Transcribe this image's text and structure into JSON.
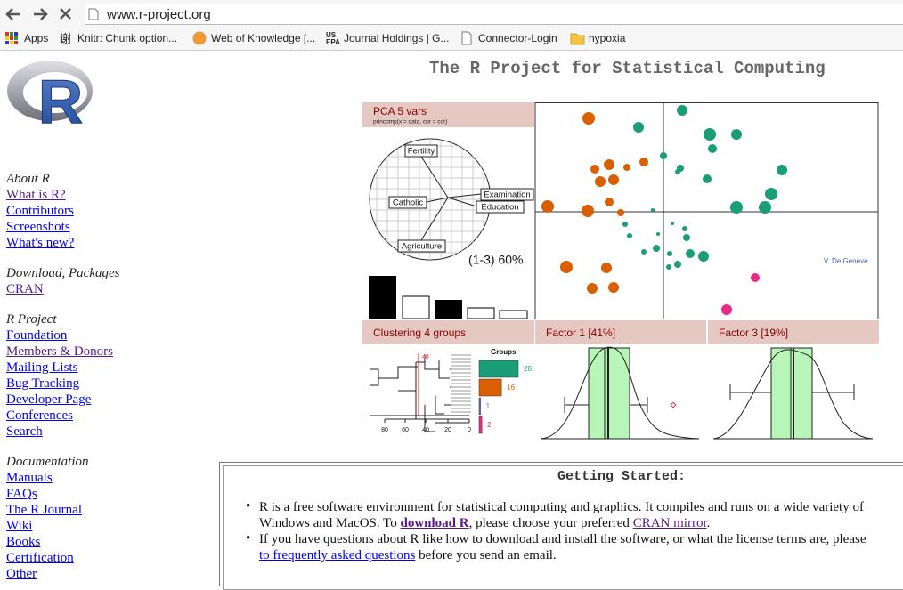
{
  "browser": {
    "url": "www.r-project.org",
    "bookmarks": [
      "Apps",
      "Knitr: Chunk option...",
      "Web of Knowledge [...",
      "Journal Holdings | G...",
      "Connector-Login",
      "hypoxia"
    ],
    "knitr_icon": "谢",
    "epa_icon": [
      "US",
      "EPA"
    ]
  },
  "header": {
    "logo": "R",
    "title": "The R Project for Statistical Computing"
  },
  "sidebar": {
    "sections": [
      {
        "heading": "About R",
        "links": [
          {
            "text": "What is R?",
            "visited": true
          },
          {
            "text": "Contributors"
          },
          {
            "text": "Screenshots"
          },
          {
            "text": "What's new?"
          }
        ]
      },
      {
        "heading": "Download, Packages",
        "links": [
          {
            "text": "CRAN",
            "visited": true
          }
        ]
      },
      {
        "heading": "R Project",
        "links": [
          {
            "text": "Foundation"
          },
          {
            "text": "Members & Donors",
            "visited": true
          },
          {
            "text": "Mailing Lists"
          },
          {
            "text": "Bug Tracking"
          },
          {
            "text": "Developer Page"
          },
          {
            "text": "Conferences"
          },
          {
            "text": "Search"
          }
        ]
      },
      {
        "heading": "Documentation",
        "links": [
          {
            "text": "Manuals"
          },
          {
            "text": "FAQs"
          },
          {
            "text": "The R Journal"
          },
          {
            "text": "Wiki"
          },
          {
            "text": "Books"
          },
          {
            "text": "Certification"
          },
          {
            "text": "Other"
          }
        ]
      }
    ]
  },
  "banner": {
    "pca_title": "PCA  5 vars",
    "pca_call": "princomp(x = data, cor = cor)",
    "variables": [
      "Fertility",
      "Catholic",
      "Examination",
      "Education",
      "Agriculture"
    ],
    "variance": "(1-3) 60%",
    "credit": "V. De Geneve",
    "clustering_title": "Clustering  4 groups",
    "cut_height": "48",
    "dendro_ticks": [
      "80",
      "60",
      "40",
      "20",
      "0"
    ],
    "groups_title": "Groups",
    "group_sizes": [
      28,
      16,
      1,
      2
    ],
    "factor1_title": "Factor 1 [41%]",
    "factor3_title": "Factor 3 [19%]"
  },
  "getting_started": {
    "heading": "Getting Started:",
    "items": [
      {
        "lines": [
          [
            "R is a free software environment for statistical computing and graphics. It compiles and runs on a wide variety of"
          ],
          [
            "Windows and MacOS. To ",
            {
              "link": "download R",
              "bold": true,
              "visited": true
            },
            ", please choose your preferred ",
            {
              "link": "CRAN mirror",
              "visited": true
            },
            "."
          ]
        ]
      },
      {
        "lines": [
          [
            "If you have questions about R like how to download and install the software, or what the license terms are, please"
          ],
          [
            {
              "link": "to frequently asked questions"
            },
            " before you send an email."
          ]
        ]
      }
    ]
  }
}
